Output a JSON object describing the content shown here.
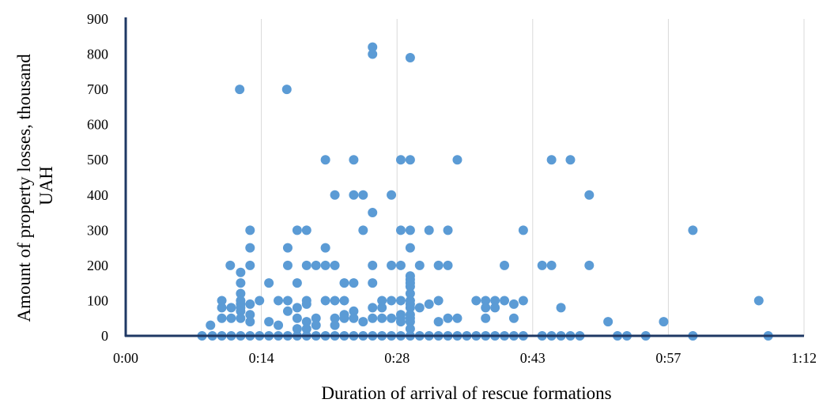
{
  "chart_data": {
    "type": "scatter",
    "title": "",
    "xlabel": "Duration of arrival of rescue formations",
    "ylabel_lines": [
      "Amount of property losses, thousand",
      "UAH"
    ],
    "x_unit": "minutes",
    "xlim": [
      0,
      72
    ],
    "ylim": [
      0,
      900
    ],
    "x_ticks": [
      0,
      14.4,
      28.8,
      43.2,
      57.6,
      72
    ],
    "x_tick_labels": [
      "0:00",
      "0:14",
      "0:28",
      "0:43",
      "0:57",
      "1:12"
    ],
    "y_ticks": [
      0,
      100,
      200,
      300,
      400,
      500,
      600,
      700,
      800,
      900
    ],
    "y_tick_labels": [
      "0",
      "100",
      "200",
      "300",
      "400",
      "500",
      "600",
      "700",
      "800",
      "900"
    ],
    "grid": "vertical",
    "legend": "none",
    "point_color": "#5b9bd5",
    "axis_color": "#1f3864",
    "series": [
      {
        "points": [
          [
            8.1,
            0
          ],
          [
            9,
            30
          ],
          [
            9.2,
            0
          ],
          [
            10.2,
            100
          ],
          [
            10.2,
            80
          ],
          [
            10.2,
            50
          ],
          [
            10.2,
            0
          ],
          [
            11.1,
            200
          ],
          [
            11.2,
            80
          ],
          [
            11.2,
            50
          ],
          [
            11.2,
            0
          ],
          [
            12.1,
            700
          ],
          [
            12.2,
            180
          ],
          [
            12.2,
            150
          ],
          [
            12.2,
            120
          ],
          [
            12.2,
            100
          ],
          [
            12.2,
            90
          ],
          [
            12.2,
            80
          ],
          [
            12.2,
            70
          ],
          [
            12.2,
            50
          ],
          [
            12.2,
            0
          ],
          [
            13.2,
            300
          ],
          [
            13.2,
            250
          ],
          [
            13.2,
            200
          ],
          [
            13.2,
            90
          ],
          [
            13.2,
            60
          ],
          [
            13.2,
            40
          ],
          [
            13.2,
            0
          ],
          [
            14.2,
            100
          ],
          [
            14.2,
            0
          ],
          [
            15.2,
            150
          ],
          [
            15.2,
            40
          ],
          [
            15.2,
            0
          ],
          [
            16.2,
            100
          ],
          [
            16.2,
            30
          ],
          [
            16.2,
            0
          ],
          [
            17.1,
            700
          ],
          [
            17.2,
            250
          ],
          [
            17.2,
            200
          ],
          [
            17.2,
            100
          ],
          [
            17.2,
            70
          ],
          [
            17.2,
            0
          ],
          [
            18.2,
            300
          ],
          [
            18.2,
            150
          ],
          [
            18.2,
            80
          ],
          [
            18.2,
            50
          ],
          [
            18.2,
            20
          ],
          [
            18.2,
            0
          ],
          [
            19.2,
            300
          ],
          [
            19.2,
            200
          ],
          [
            19.2,
            100
          ],
          [
            19.2,
            90
          ],
          [
            19.2,
            40
          ],
          [
            19.2,
            20
          ],
          [
            19.2,
            0
          ],
          [
            20.2,
            200
          ],
          [
            20.2,
            50
          ],
          [
            20.2,
            30
          ],
          [
            20.2,
            0
          ],
          [
            21.2,
            500
          ],
          [
            21.2,
            250
          ],
          [
            21.2,
            200
          ],
          [
            21.2,
            100
          ],
          [
            21.2,
            0
          ],
          [
            22.2,
            400
          ],
          [
            22.2,
            200
          ],
          [
            22.2,
            100
          ],
          [
            22.2,
            50
          ],
          [
            22.2,
            30
          ],
          [
            22.2,
            0
          ],
          [
            23.2,
            150
          ],
          [
            23.2,
            100
          ],
          [
            23.2,
            60
          ],
          [
            23.2,
            50
          ],
          [
            23.2,
            0
          ],
          [
            24.2,
            500
          ],
          [
            24.2,
            400
          ],
          [
            24.2,
            150
          ],
          [
            24.2,
            70
          ],
          [
            24.2,
            50
          ],
          [
            24.2,
            0
          ],
          [
            25.2,
            400
          ],
          [
            25.2,
            300
          ],
          [
            25.2,
            40
          ],
          [
            25.2,
            0
          ],
          [
            26.2,
            820
          ],
          [
            26.2,
            800
          ],
          [
            26.2,
            350
          ],
          [
            26.2,
            200
          ],
          [
            26.2,
            150
          ],
          [
            26.2,
            80
          ],
          [
            26.2,
            50
          ],
          [
            26.2,
            0
          ],
          [
            27.2,
            100
          ],
          [
            27.2,
            80
          ],
          [
            27.2,
            50
          ],
          [
            27.2,
            0
          ],
          [
            28.2,
            400
          ],
          [
            28.2,
            200
          ],
          [
            28.2,
            100
          ],
          [
            28.2,
            50
          ],
          [
            28.2,
            0
          ],
          [
            29.2,
            500
          ],
          [
            29.2,
            300
          ],
          [
            29.2,
            200
          ],
          [
            29.2,
            100
          ],
          [
            29.2,
            60
          ],
          [
            29.2,
            50
          ],
          [
            29.2,
            40
          ],
          [
            29.2,
            0
          ],
          [
            30.2,
            790
          ],
          [
            30.2,
            500
          ],
          [
            30.2,
            300
          ],
          [
            30.2,
            250
          ],
          [
            30.2,
            170
          ],
          [
            30.2,
            160
          ],
          [
            30.2,
            150
          ],
          [
            30.2,
            140
          ],
          [
            30.2,
            120
          ],
          [
            30.2,
            100
          ],
          [
            30.2,
            90
          ],
          [
            30.2,
            80
          ],
          [
            30.2,
            60
          ],
          [
            30.2,
            50
          ],
          [
            30.2,
            40
          ],
          [
            30.2,
            20
          ],
          [
            30.2,
            0
          ],
          [
            31.2,
            200
          ],
          [
            31.2,
            80
          ],
          [
            31.2,
            0
          ],
          [
            32.2,
            300
          ],
          [
            32.2,
            90
          ],
          [
            32.2,
            0
          ],
          [
            33.2,
            200
          ],
          [
            33.2,
            100
          ],
          [
            33.2,
            40
          ],
          [
            33.2,
            0
          ],
          [
            34.2,
            300
          ],
          [
            34.2,
            200
          ],
          [
            34.2,
            50
          ],
          [
            34.2,
            0
          ],
          [
            35.2,
            500
          ],
          [
            35.2,
            50
          ],
          [
            35.2,
            0
          ],
          [
            36.2,
            0
          ],
          [
            37.2,
            100
          ],
          [
            37.2,
            0
          ],
          [
            38.2,
            100
          ],
          [
            38.2,
            80
          ],
          [
            38.2,
            50
          ],
          [
            38.2,
            0
          ],
          [
            39.2,
            100
          ],
          [
            39.2,
            80
          ],
          [
            39.2,
            0
          ],
          [
            40.2,
            200
          ],
          [
            40.2,
            100
          ],
          [
            40.2,
            0
          ],
          [
            41.2,
            90
          ],
          [
            41.2,
            50
          ],
          [
            41.2,
            0
          ],
          [
            42.2,
            300
          ],
          [
            42.2,
            100
          ],
          [
            42.2,
            0
          ],
          [
            44.2,
            200
          ],
          [
            44.2,
            0
          ],
          [
            45.2,
            500
          ],
          [
            45.2,
            200
          ],
          [
            45.2,
            0
          ],
          [
            46.2,
            80
          ],
          [
            46.2,
            0
          ],
          [
            47.2,
            500
          ],
          [
            47.2,
            0
          ],
          [
            48.2,
            0
          ],
          [
            49.2,
            400
          ],
          [
            49.2,
            200
          ],
          [
            51.2,
            40
          ],
          [
            52.2,
            0
          ],
          [
            53.2,
            0
          ],
          [
            55.2,
            0
          ],
          [
            57.1,
            40
          ],
          [
            60.2,
            300
          ],
          [
            60.2,
            0
          ],
          [
            67.2,
            100
          ],
          [
            68.2,
            0
          ]
        ]
      }
    ]
  }
}
